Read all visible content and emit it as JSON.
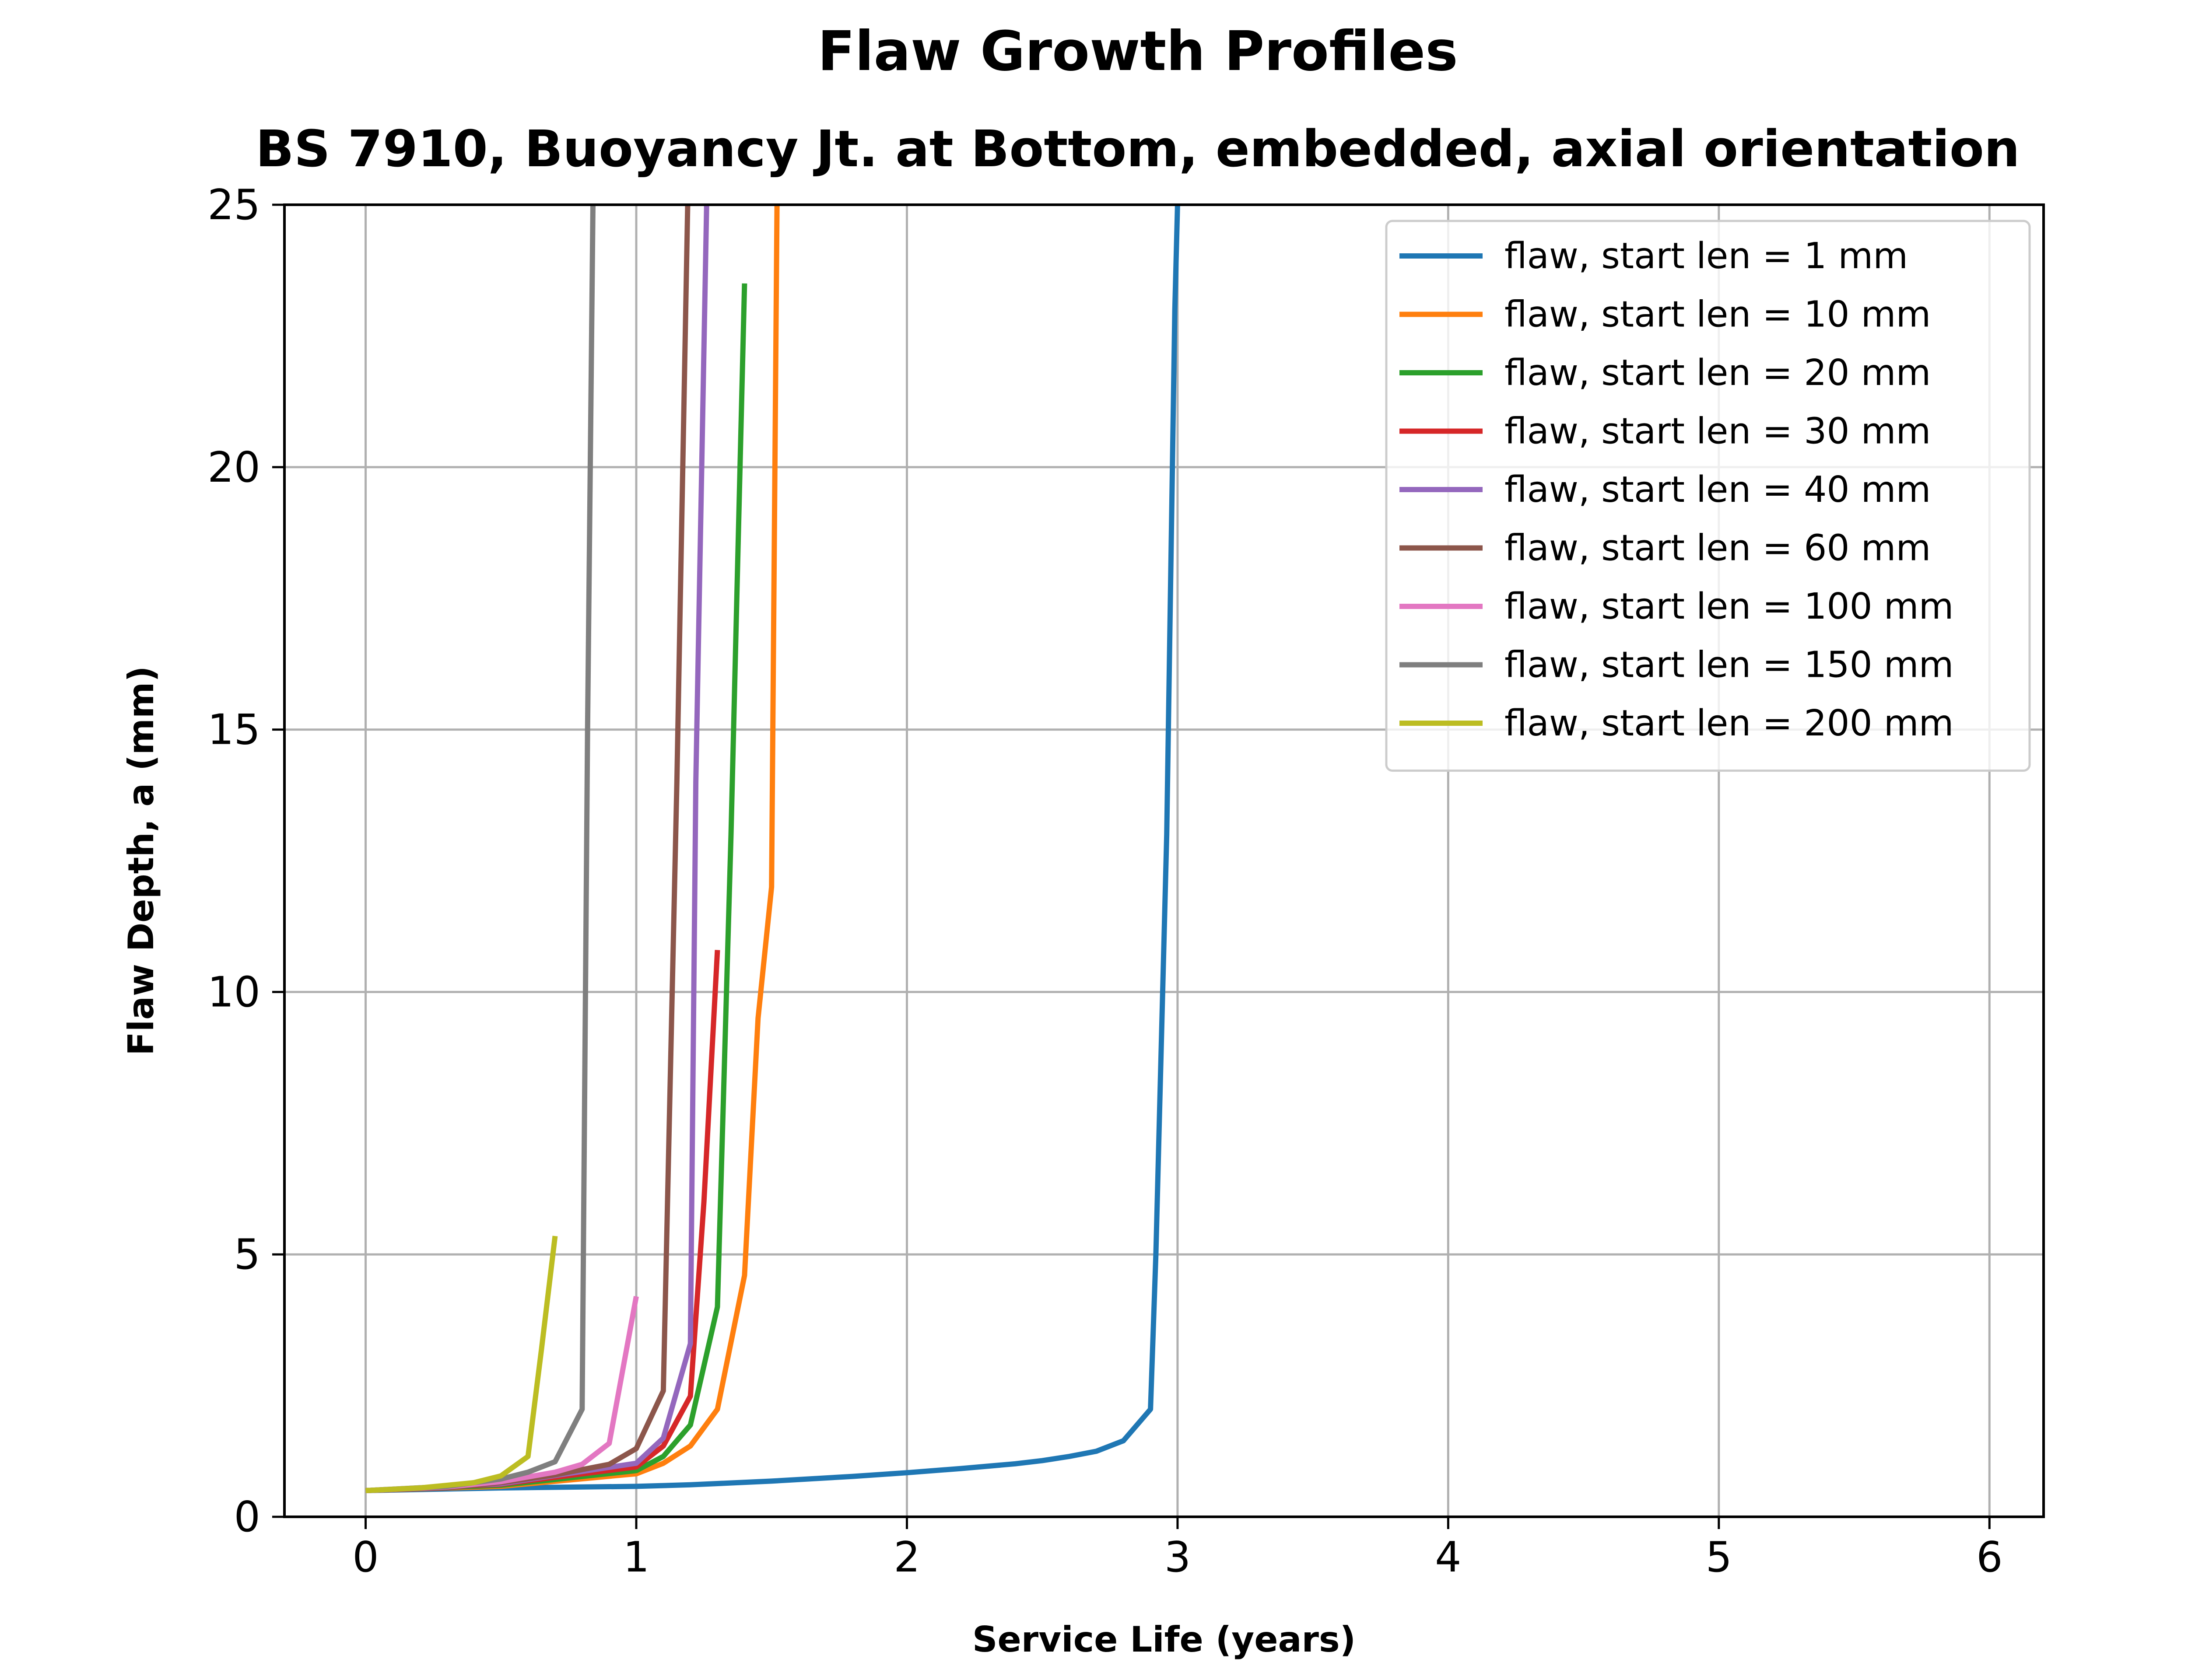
{
  "chart_data": {
    "type": "line",
    "title": "Flaw Growth Profiles",
    "subtitle": "BS 7910, Buoyancy Jt. at Bottom, embedded, axial orientation",
    "xlabel": "Service Life (years)",
    "ylabel": "Flaw Depth, a (mm)",
    "xlim": [
      -0.3,
      6.2
    ],
    "ylim": [
      0,
      25
    ],
    "xticks": [
      "0",
      "1",
      "2",
      "3",
      "4",
      "5",
      "6"
    ],
    "yticks": [
      "0",
      "5",
      "10",
      "15",
      "20",
      "25"
    ],
    "grid": true,
    "legend_position": "top-right",
    "series": [
      {
        "name": "flaw, start len = 1 mm",
        "color": "#1f77b4",
        "x": [
          0,
          0.5,
          1.0,
          1.2,
          1.5,
          1.8,
          2.0,
          2.2,
          2.4,
          2.5,
          2.6,
          2.7,
          2.8,
          2.9,
          2.92,
          2.96,
          2.99,
          3.0
        ],
        "y": [
          0.5,
          0.55,
          0.58,
          0.61,
          0.68,
          0.77,
          0.84,
          0.92,
          1.01,
          1.07,
          1.15,
          1.25,
          1.45,
          2.05,
          5,
          13,
          23,
          25
        ]
      },
      {
        "name": "flaw, start len = 10 mm",
        "color": "#ff7f0e",
        "x": [
          0,
          0.5,
          1.0,
          1.1,
          1.2,
          1.3,
          1.4,
          1.45,
          1.5,
          1.52
        ],
        "y": [
          0.5,
          0.58,
          0.82,
          1.02,
          1.35,
          2.05,
          4.6,
          9.5,
          12,
          25
        ]
      },
      {
        "name": "flaw, start len = 20 mm",
        "color": "#2ca02c",
        "x": [
          0,
          0.5,
          1.0,
          1.1,
          1.2,
          1.3,
          1.35,
          1.4
        ],
        "y": [
          0.5,
          0.6,
          0.88,
          1.15,
          1.75,
          4.0,
          13,
          23.5
        ]
      },
      {
        "name": "flaw, start len = 30 mm",
        "color": "#d62728",
        "x": [
          0,
          0.5,
          1.0,
          1.1,
          1.2,
          1.25,
          1.3
        ],
        "y": [
          0.5,
          0.62,
          0.95,
          1.35,
          2.3,
          6,
          10.8
        ]
      },
      {
        "name": "flaw, start len = 40 mm",
        "color": "#9467bd",
        "x": [
          0,
          0.5,
          1.0,
          1.1,
          1.2,
          1.22,
          1.26
        ],
        "y": [
          0.5,
          0.63,
          1.02,
          1.5,
          3.3,
          14,
          25
        ]
      },
      {
        "name": "flaw, start len = 60 mm",
        "color": "#8c564b",
        "x": [
          0,
          0.3,
          0.5,
          0.7,
          0.9,
          1.0,
          1.1,
          1.15,
          1.19
        ],
        "y": [
          0.5,
          0.55,
          0.65,
          0.8,
          1.0,
          1.3,
          2.4,
          14,
          25
        ]
      },
      {
        "name": "flaw, start len = 100 mm",
        "color": "#e377c2",
        "x": [
          0,
          0.3,
          0.5,
          0.7,
          0.8,
          0.9,
          1.0
        ],
        "y": [
          0.5,
          0.57,
          0.67,
          0.85,
          1.0,
          1.4,
          4.2
        ]
      },
      {
        "name": "flaw, start len = 150 mm",
        "color": "#7f7f7f",
        "x": [
          0,
          0.3,
          0.5,
          0.6,
          0.7,
          0.8,
          0.82,
          0.84
        ],
        "y": [
          0.5,
          0.58,
          0.72,
          0.85,
          1.05,
          2.05,
          15,
          25
        ]
      },
      {
        "name": "flaw, start len = 200 mm",
        "color": "#bcbd22",
        "x": [
          0,
          0.2,
          0.4,
          0.5,
          0.6,
          0.65,
          0.7
        ],
        "y": [
          0.5,
          0.55,
          0.65,
          0.78,
          1.15,
          3.2,
          5.35
        ]
      }
    ]
  }
}
